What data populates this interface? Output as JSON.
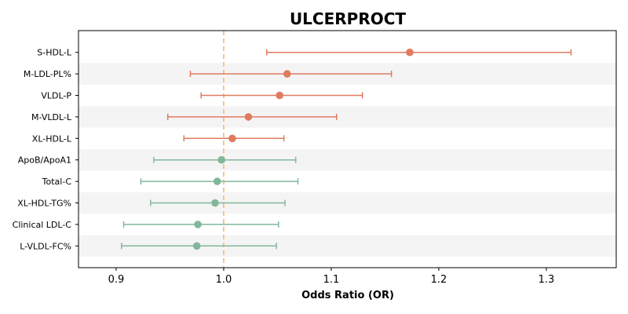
{
  "chart_data": {
    "type": "forest",
    "title": "ULCERPROCT",
    "xlabel": "Odds Ratio (OR)",
    "xlim": [
      0.865,
      1.365
    ],
    "xticks": [
      0.9,
      1.0,
      1.1,
      1.2,
      1.3
    ],
    "xtick_labels": [
      "0.9",
      "1.0",
      "1.1",
      "1.2",
      "1.3"
    ],
    "reference_line": 1.0,
    "grid": false,
    "colors": {
      "positive": "#e07b5f",
      "negative": "#82b79b",
      "reference": "#f5c27a",
      "band": "#f4f4f4"
    },
    "rows": [
      {
        "label": "S-HDL-L",
        "or": 1.173,
        "lower": 1.04,
        "upper": 1.323
      },
      {
        "label": "M-LDL-PL%",
        "or": 1.059,
        "lower": 0.969,
        "upper": 1.156
      },
      {
        "label": "VLDL-P",
        "or": 1.052,
        "lower": 0.979,
        "upper": 1.129
      },
      {
        "label": "M-VLDL-L",
        "or": 1.023,
        "lower": 0.948,
        "upper": 1.105
      },
      {
        "label": "XL-HDL-L",
        "or": 1.008,
        "lower": 0.963,
        "upper": 1.056
      },
      {
        "label": "ApoB/ApoA1",
        "or": 0.998,
        "lower": 0.935,
        "upper": 1.067
      },
      {
        "label": "Total-C",
        "or": 0.994,
        "lower": 0.923,
        "upper": 1.069
      },
      {
        "label": "XL-HDL-TG%",
        "or": 0.992,
        "lower": 0.932,
        "upper": 1.057
      },
      {
        "label": "Clinical LDL-C",
        "or": 0.976,
        "lower": 0.907,
        "upper": 1.051
      },
      {
        "label": "L-VLDL-FC%",
        "or": 0.975,
        "lower": 0.905,
        "upper": 1.049
      }
    ]
  }
}
